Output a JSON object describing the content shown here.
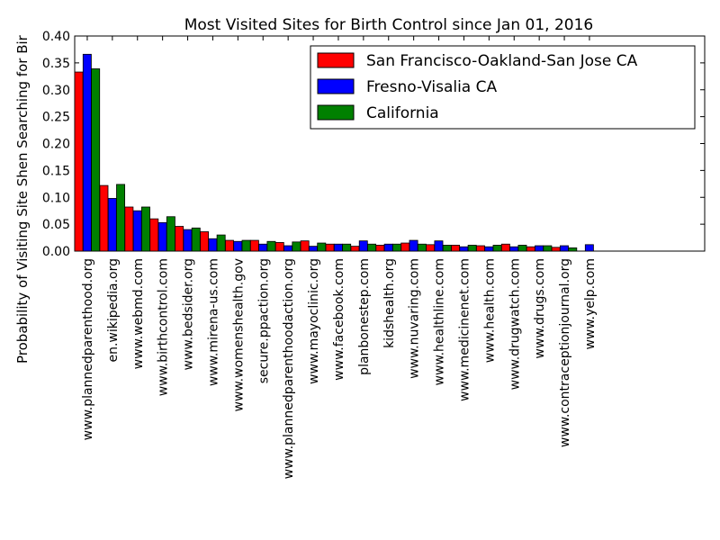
{
  "chart_data": {
    "type": "bar",
    "title": "Most Visited Sites for Birth Control since Jan 01, 2016",
    "xlabel": "",
    "ylabel": "Probability of Visiting Site Shen Searching for Bir",
    "ylim": [
      0,
      0.4
    ],
    "yticks": [
      "0.00",
      "0.05",
      "0.10",
      "0.15",
      "0.20",
      "0.25",
      "0.30",
      "0.35",
      "0.40"
    ],
    "grid": false,
    "legend_position": "top-right",
    "categories": [
      "www.plannedparenthood.org",
      "en.wikipedia.org",
      "www.webmd.com",
      "www.birthcontrol.com",
      "www.bedsider.org",
      "www.mirena-us.com",
      "www.womenshealth.gov",
      "secure.ppaction.org",
      "www.plannedparenthoodaction.org",
      "www.mayoclinic.org",
      "www.facebook.com",
      "planbonestep.com",
      "kidshealth.org",
      "www.nuvaring.com",
      "www.healthline.com",
      "www.medicinenet.com",
      "www.health.com",
      "www.drugwatch.com",
      "www.drugs.com",
      "www.contraceptionjournal.org",
      "www.yelp.com"
    ],
    "series": [
      {
        "name": "San Francisco-Oakland-San Jose CA",
        "color": "#ff0000",
        "values": [
          0.333,
          0.122,
          0.082,
          0.06,
          0.046,
          0.036,
          0.02,
          0.02,
          0.016,
          0.019,
          0.013,
          0.009,
          0.011,
          0.015,
          0.012,
          0.011,
          0.01,
          0.013,
          0.008,
          0.007,
          0.0
        ]
      },
      {
        "name": "Fresno-Visalia CA",
        "color": "#0000ff",
        "values": [
          0.366,
          0.098,
          0.075,
          0.053,
          0.04,
          0.023,
          0.018,
          0.013,
          0.01,
          0.009,
          0.013,
          0.019,
          0.013,
          0.02,
          0.019,
          0.008,
          0.008,
          0.008,
          0.01,
          0.01,
          0.012
        ]
      },
      {
        "name": "California",
        "color": "#008000",
        "values": [
          0.339,
          0.124,
          0.082,
          0.064,
          0.043,
          0.03,
          0.02,
          0.018,
          0.017,
          0.015,
          0.013,
          0.013,
          0.013,
          0.013,
          0.011,
          0.011,
          0.011,
          0.011,
          0.01,
          0.006,
          0.0
        ]
      }
    ]
  }
}
